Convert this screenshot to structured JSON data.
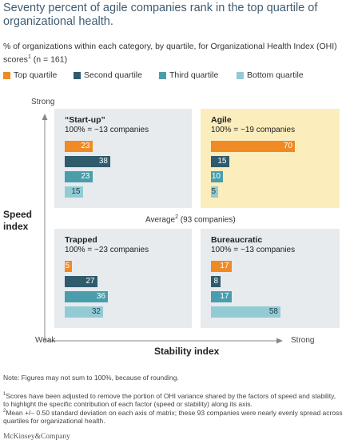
{
  "title": "Seventy percent of agile companies rank in the top quartile of organizational health.",
  "subtitle_main": "% of organizations within each category, by quartile, for Organizational Health Index (OHI) scores",
  "subtitle_sup": "1",
  "subtitle_n": " (n = 161)",
  "legend": {
    "items": [
      {
        "label": "Top quartile",
        "color": "#f08a24"
      },
      {
        "label": "Second quartile",
        "color": "#2f5b6d"
      },
      {
        "label": "Third quartile",
        "color": "#4a9eab"
      },
      {
        "label": "Bottom quartile",
        "color": "#93cbd5"
      }
    ]
  },
  "axes": {
    "y_title_line1": "Speed",
    "y_title_line2": "index",
    "y_high": "Strong",
    "y_low": "Weak",
    "x_title": "Stability index",
    "x_high": "Strong"
  },
  "average": {
    "text": "Average",
    "sup": "2",
    "rest": " (93 companies)"
  },
  "chart_data": {
    "type": "bar",
    "orientation": "horizontal",
    "categories": [
      "Top quartile",
      "Second quartile",
      "Third quartile",
      "Bottom quartile"
    ],
    "xlim": [
      0,
      100
    ],
    "quadrants": [
      {
        "key": "startup",
        "name": "“Start-up”",
        "count": "100% = ~13 companies",
        "position": "top-left",
        "background": "#e7ebee",
        "values": [
          23,
          38,
          23,
          15
        ]
      },
      {
        "key": "agile",
        "name": "Agile",
        "count": "100% = ~19 companies",
        "position": "top-right",
        "background": "#fcedbd",
        "values": [
          70,
          15,
          10,
          5
        ]
      },
      {
        "key": "trapped",
        "name": "Trapped",
        "count": "100% = ~23 companies",
        "position": "bottom-left",
        "background": "#e7ebee",
        "values": [
          5,
          27,
          36,
          32
        ]
      },
      {
        "key": "bureaucratic",
        "name": "Bureaucratic",
        "count": "100% = ~13 companies",
        "position": "bottom-right",
        "background": "#e7ebee",
        "values": [
          17,
          8,
          17,
          58
        ]
      }
    ]
  },
  "note": "Note: Figures may not sum to 100%, because of rounding.",
  "footnote1": {
    "sup": "1",
    "text": "Scores have been adjusted to remove the portion of OHI variance shared by the factors of speed and stability, to highlight the specific contribution of each factor (speed or stability) along its axis."
  },
  "footnote2": {
    "sup": "2",
    "text": "Mean +/– 0.50 standard deviation on each axis of matrix; these 93 companies were nearly evenly spread across quartiles for organizational health."
  },
  "brand": "McKinsey&Company"
}
